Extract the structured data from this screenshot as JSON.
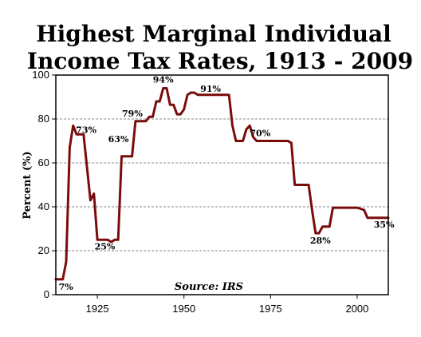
{
  "chart_data": {
    "type": "line",
    "title_lines": [
      "Highest Marginal Individual",
      "Income Tax Rates, 1913 - 2009"
    ],
    "ylabel": "Percent (%)",
    "xlim": [
      1913,
      2009
    ],
    "ylim": [
      0,
      100
    ],
    "xticks": [
      1925,
      1950,
      1975,
      2000
    ],
    "yticks": [
      0,
      20,
      40,
      60,
      80,
      100
    ],
    "grid_y": true,
    "line_color": "#7a0c0c",
    "source": "Source: IRS",
    "series": [
      {
        "x": [
          1913,
          1915,
          1916,
          1917,
          1918,
          1919,
          1920,
          1921,
          1922,
          1923,
          1924,
          1925,
          1926,
          1927,
          1928,
          1929,
          1930,
          1931,
          1932,
          1933,
          1934,
          1935,
          1936,
          1937,
          1938,
          1939,
          1940,
          1941,
          1942,
          1943,
          1944,
          1945,
          1946,
          1947,
          1948,
          1949,
          1950,
          1951,
          1952,
          1953,
          1954,
          1955,
          1960,
          1963,
          1964,
          1965,
          1966,
          1967,
          1968,
          1969,
          1970,
          1971,
          1972,
          1975,
          1980,
          1981,
          1982,
          1985,
          1986,
          1987,
          1988,
          1989,
          1990,
          1991,
          1992,
          1993,
          1995,
          2000,
          2001,
          2002,
          2003,
          2005,
          2009
        ],
        "y": [
          7,
          7,
          15,
          67,
          77,
          73,
          73,
          73,
          58,
          43,
          46,
          25,
          25,
          25,
          25,
          24,
          25,
          25,
          63,
          63,
          63,
          63,
          79,
          79,
          79,
          79,
          81,
          81,
          88,
          88,
          94,
          94,
          86.45,
          86.45,
          82.13,
          82.13,
          84.36,
          91,
          92,
          92,
          91,
          91,
          91,
          91,
          77,
          70,
          70,
          70,
          75.25,
          77,
          71.75,
          70,
          70,
          70,
          70,
          69.13,
          50,
          50,
          50,
          38.5,
          28,
          28,
          31,
          31,
          31,
          39.6,
          39.6,
          39.6,
          39.1,
          38.6,
          35,
          35,
          35
        ]
      }
    ],
    "annotations": [
      {
        "text": "7%",
        "x": 1915,
        "y": 7
      },
      {
        "text": "73%",
        "x": 1919,
        "y": 73
      },
      {
        "text": "25%",
        "x": 1929,
        "y": 25
      },
      {
        "text": "63%",
        "x": 1932,
        "y": 63
      },
      {
        "text": "79%",
        "x": 1936,
        "y": 79
      },
      {
        "text": "94%",
        "x": 1944,
        "y": 94
      },
      {
        "text": "91%",
        "x": 1957,
        "y": 91
      },
      {
        "text": "70%",
        "x": 1972,
        "y": 70
      },
      {
        "text": "28%",
        "x": 1988,
        "y": 28
      },
      {
        "text": "35%",
        "x": 2005,
        "y": 35
      }
    ]
  }
}
